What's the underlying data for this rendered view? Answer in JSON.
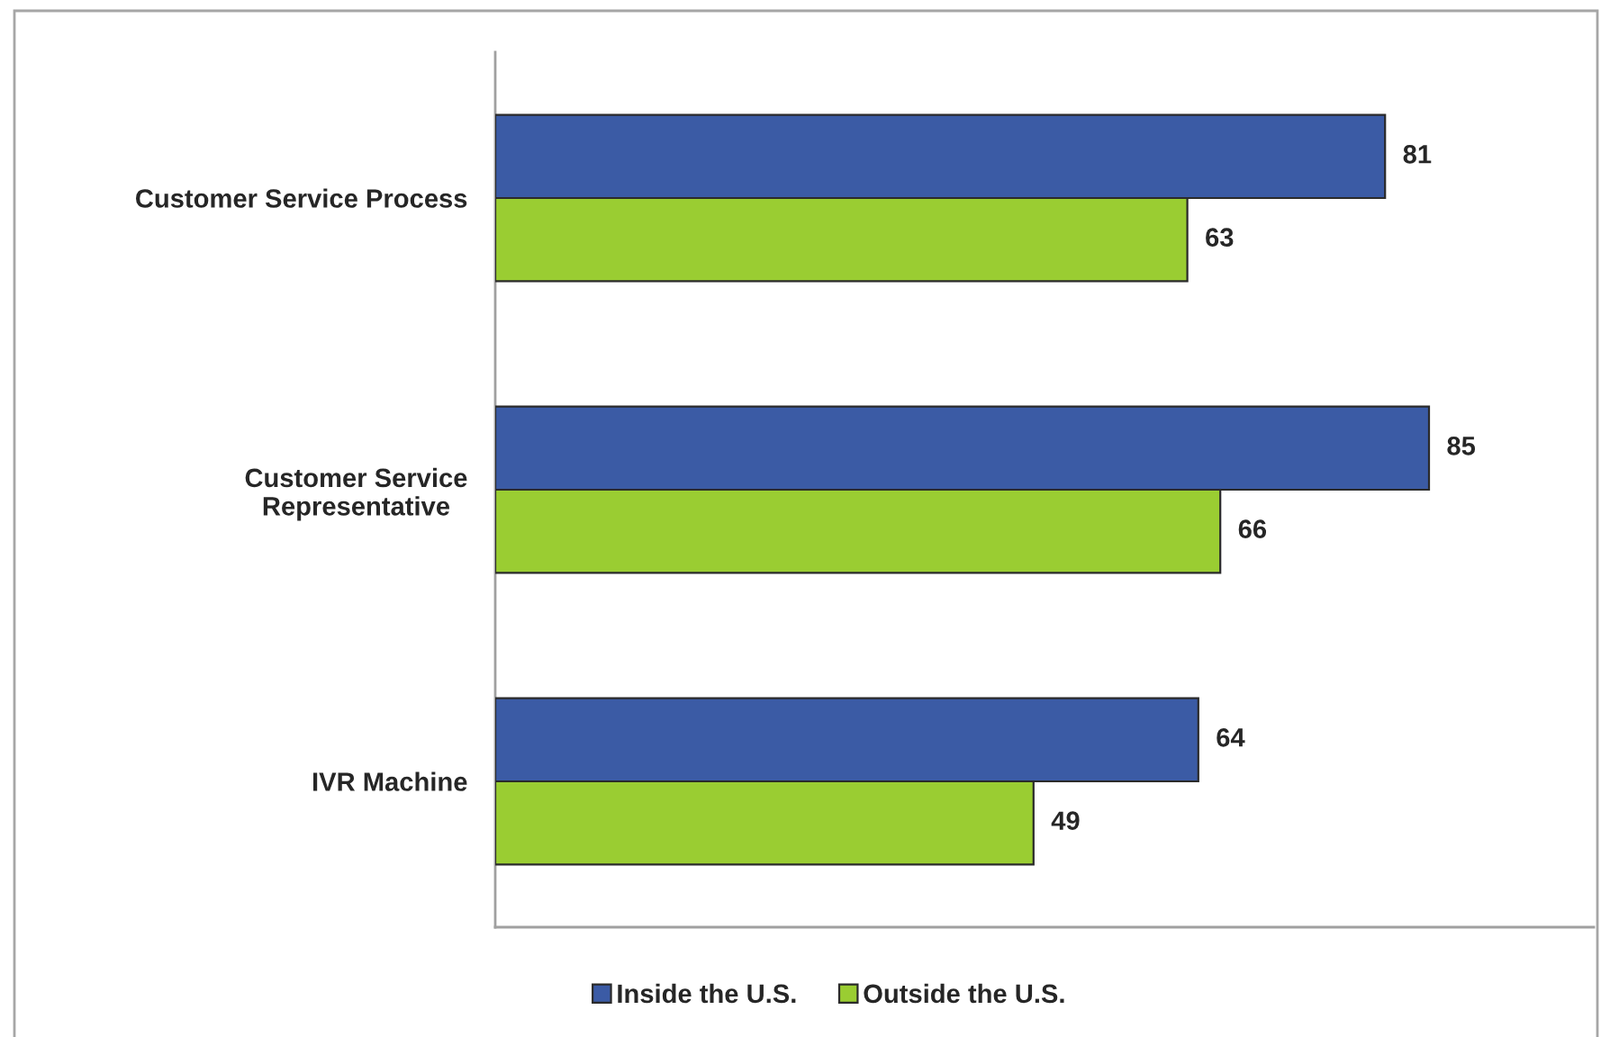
{
  "chart_data": {
    "type": "bar",
    "orientation": "horizontal",
    "categories": [
      "Customer Service Process",
      "Customer Service\nRepresentative",
      "IVR Machine"
    ],
    "series": [
      {
        "name": "Inside the U.S.",
        "color": "#3b5ba5",
        "values": [
          81,
          85,
          64
        ]
      },
      {
        "name": "Outside the U.S.",
        "color": "#9acd32",
        "values": [
          63,
          66,
          49
        ]
      }
    ],
    "xlim": [
      0,
      100
    ],
    "data_labels": true,
    "legend": "bottom",
    "tick_labels": "y"
  }
}
